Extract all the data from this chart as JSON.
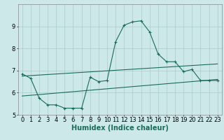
{
  "xlabel": "Humidex (Indice chaleur)",
  "background_color": "#cce8e8",
  "grid_color": "#aacccc",
  "line_color": "#1a6b5a",
  "xlim": [
    -0.5,
    23.5
  ],
  "ylim": [
    5,
    10
  ],
  "yticks": [
    5,
    6,
    7,
    8,
    9
  ],
  "xticks": [
    0,
    1,
    2,
    3,
    4,
    5,
    6,
    7,
    8,
    9,
    10,
    11,
    12,
    13,
    14,
    15,
    16,
    17,
    18,
    19,
    20,
    21,
    22,
    23
  ],
  "line1_x": [
    0,
    1,
    2,
    3,
    4,
    5,
    6,
    7,
    8,
    9,
    10,
    11,
    12,
    13,
    14,
    15,
    16,
    17,
    18,
    19,
    20,
    21,
    22,
    23
  ],
  "line1_y": [
    6.85,
    6.65,
    5.75,
    5.45,
    5.45,
    5.3,
    5.3,
    5.3,
    6.7,
    6.5,
    6.55,
    8.3,
    9.05,
    9.2,
    9.25,
    8.75,
    7.75,
    7.4,
    7.4,
    6.95,
    7.05,
    6.55,
    6.55,
    6.55
  ],
  "line2_x": [
    0,
    23
  ],
  "line2_y": [
    6.75,
    7.3
  ],
  "line3_x": [
    0,
    23
  ],
  "line3_y": [
    5.85,
    6.6
  ],
  "xlabel_fontsize": 7,
  "tick_fontsize": 6,
  "ylabel_fontsize": 6
}
